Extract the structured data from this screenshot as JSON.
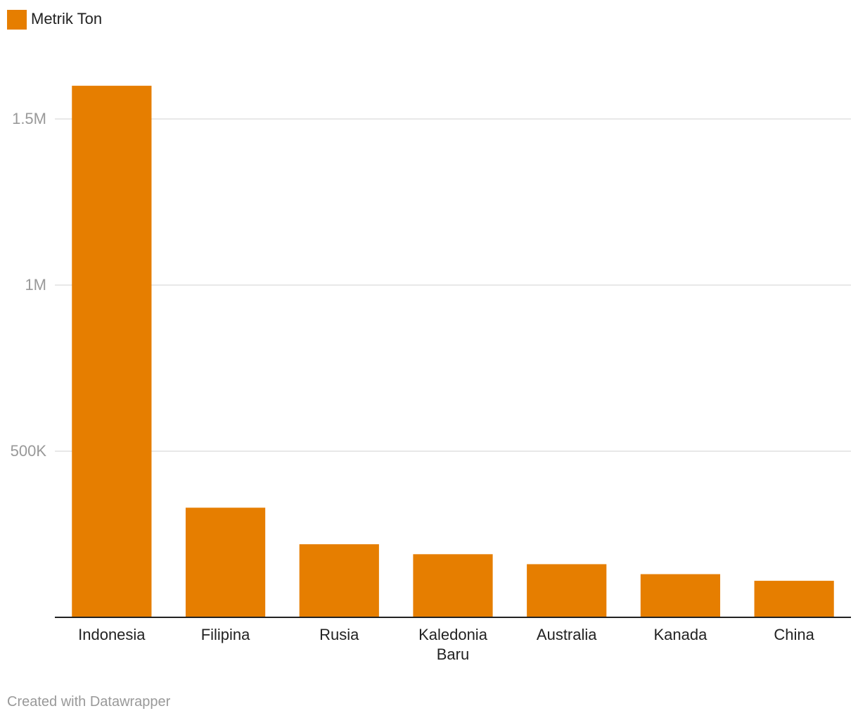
{
  "chart_data": {
    "type": "bar",
    "categories": [
      "Indonesia",
      "Filipina",
      "Rusia",
      "Kaledonia Baru",
      "Australia",
      "Kanada",
      "China"
    ],
    "series": [
      {
        "name": "Metrik Ton",
        "color": "#e67e00",
        "values": [
          1600000,
          330000,
          220000,
          190000,
          160000,
          130000,
          110000
        ]
      }
    ],
    "ylim": [
      0,
      1700000
    ],
    "yticks": [
      {
        "value": 500000,
        "label": "500K"
      },
      {
        "value": 1000000,
        "label": "1M"
      },
      {
        "value": 1500000,
        "label": "1.5M"
      }
    ],
    "grid": true,
    "legend": "top-left"
  },
  "footer": {
    "credit": "Created with Datawrapper"
  }
}
